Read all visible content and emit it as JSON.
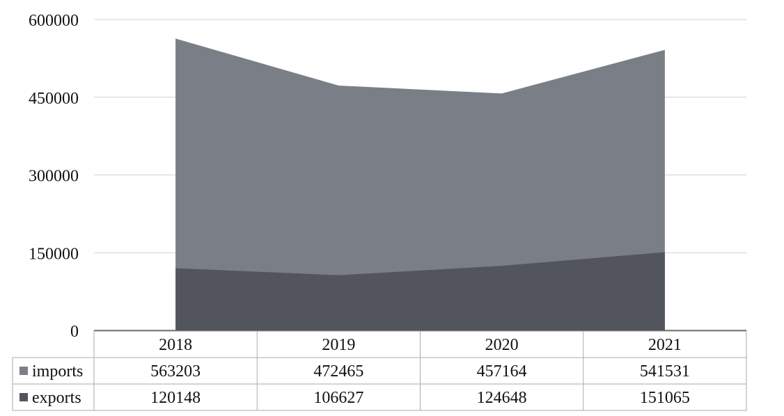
{
  "chart_data": {
    "type": "area",
    "categories": [
      "2018",
      "2019",
      "2020",
      "2021"
    ],
    "series": [
      {
        "name": "imports",
        "values": [
          563203,
          472465,
          457164,
          541531
        ],
        "color": "#7a7f87"
      },
      {
        "name": "exports",
        "values": [
          120148,
          106627,
          124648,
          151065
        ],
        "color": "#52555e"
      }
    ],
    "yticks": [
      "0",
      "150000",
      "300000",
      "450000",
      "600000"
    ],
    "ylim": [
      0,
      600000
    ],
    "grid": true,
    "legend": "data-table-left",
    "table": {
      "rows": [
        {
          "label": "imports",
          "cells": [
            "563203",
            "472465",
            "457164",
            "541531"
          ]
        },
        {
          "label": "exports",
          "cells": [
            "120148",
            "106627",
            "124648",
            "151065"
          ]
        }
      ]
    }
  }
}
